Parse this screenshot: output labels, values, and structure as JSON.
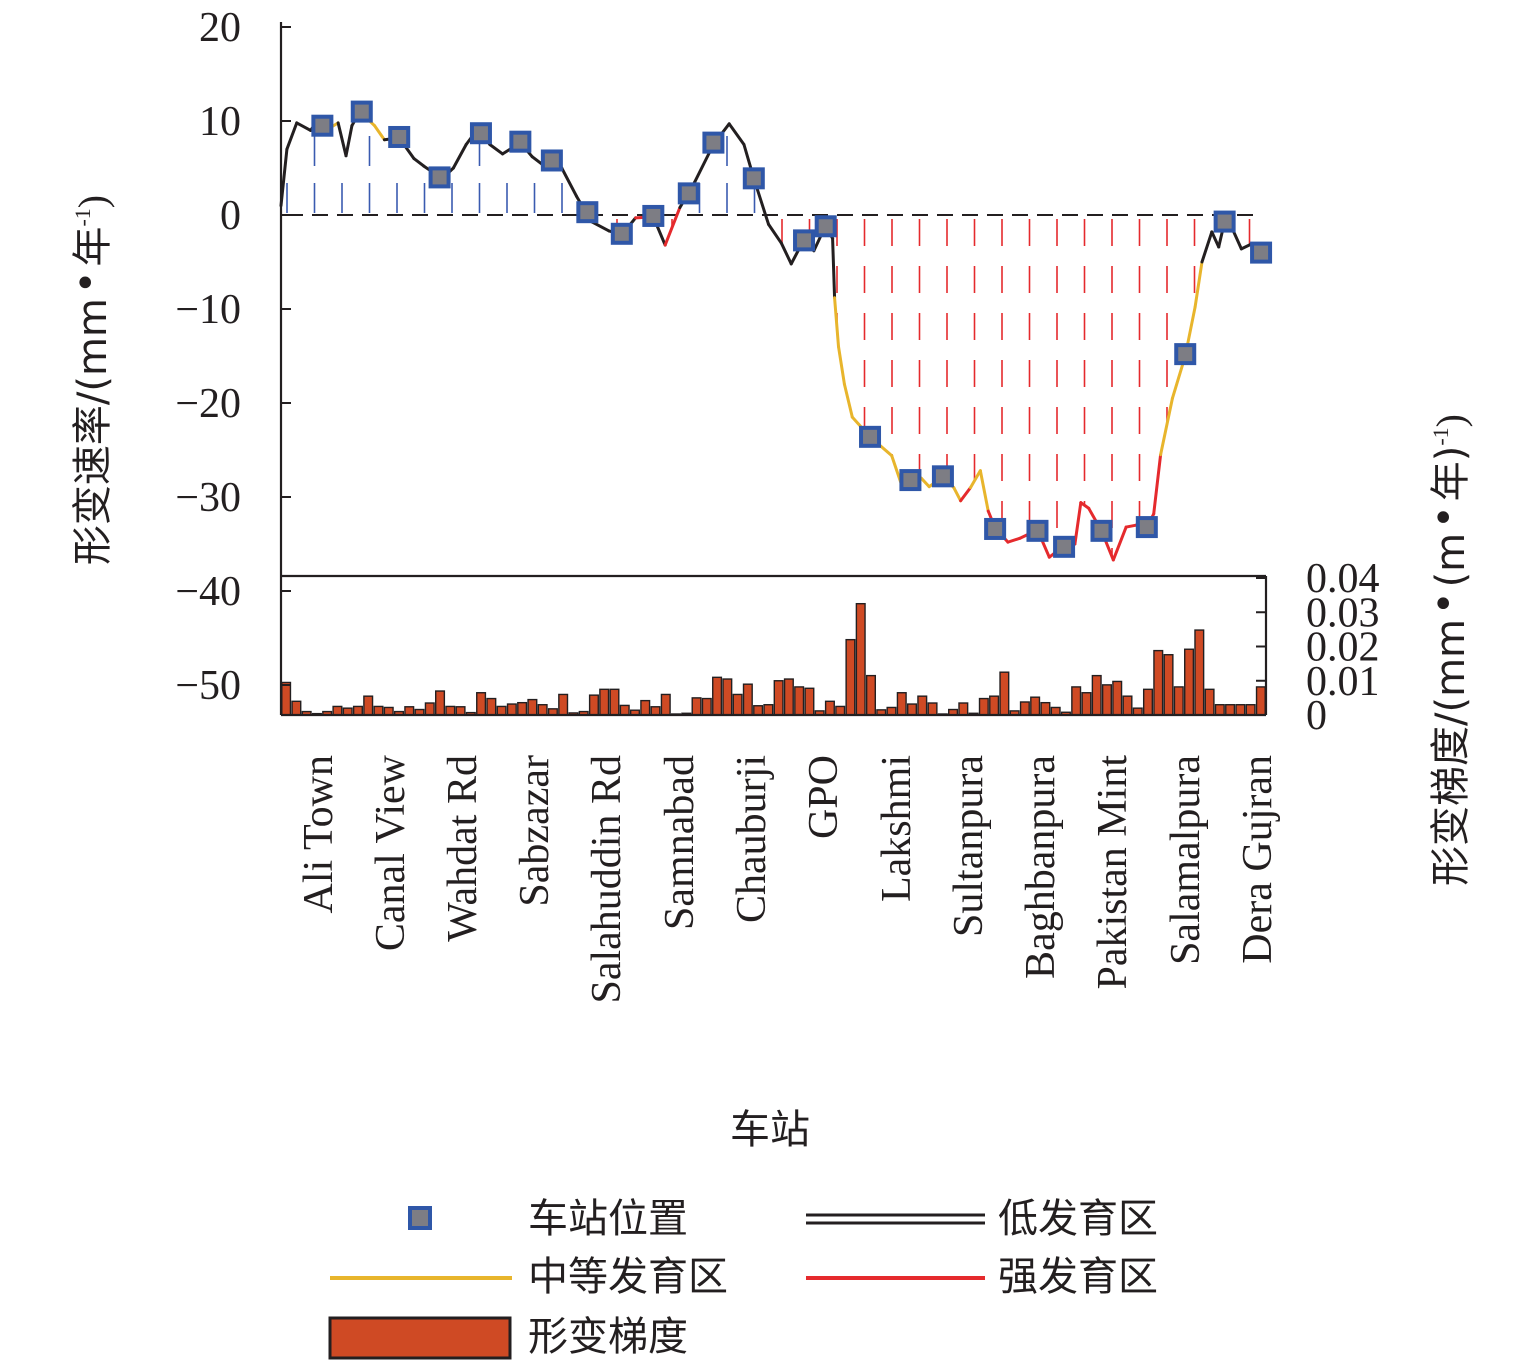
{
  "chart_data": {
    "type": "line+bar",
    "xlabel": "车站",
    "ylabel_left": "形变速率/(mm·年⁻¹)",
    "ylabel_right": "形变梯度/(mm·(m·年)⁻¹)",
    "ylabel_left_text": "形变速率/(mm",
    "ylabel_left_tail": "年",
    "ylabel_left_exp": "-1",
    "ylabel_left_close": ")",
    "ylabel_right_text": "形变梯度/(mm",
    "ylabel_right_mid": "(m",
    "ylabel_right_tail": "年)",
    "ylabel_right_exp": "-1",
    "ylabel_right_close": ")",
    "dot": "•",
    "ylim_left": [
      -52.5,
      20
    ],
    "ylim_right": [
      0,
      0.04
    ],
    "yticks_left": [
      "20",
      "10",
      "0",
      "−10",
      "−20",
      "−30",
      "−40",
      "−50"
    ],
    "yticks_right": [
      "0.04",
      "0.03",
      "0.02",
      "0.01",
      "0"
    ],
    "stations": [
      "Ali Town",
      "Canal View",
      "Wahdat Rd",
      "Sabzazar",
      "Salahuddin Rd",
      "Samnabad",
      "Chauburji",
      "GPO",
      "Lakshmi",
      "Sultanpura",
      "Baghbanpura",
      "Pakistan Mint",
      "Salamalpura",
      "Dera Gujran"
    ],
    "station_markers": [
      {
        "pos": 0.042,
        "value": 9.5
      },
      {
        "pos": 0.082,
        "value": 11.0
      },
      {
        "pos": 0.12,
        "value": 8.3
      },
      {
        "pos": 0.161,
        "value": 4.0
      },
      {
        "pos": 0.203,
        "value": 8.7
      },
      {
        "pos": 0.243,
        "value": 7.8
      },
      {
        "pos": 0.275,
        "value": 5.8
      },
      {
        "pos": 0.311,
        "value": 0.3
      },
      {
        "pos": 0.346,
        "value": -2.0
      },
      {
        "pos": 0.378,
        "value": -0.1
      },
      {
        "pos": 0.414,
        "value": 2.3
      },
      {
        "pos": 0.439,
        "value": 7.7
      },
      {
        "pos": 0.48,
        "value": 3.9
      },
      {
        "pos": 0.531,
        "value": -2.7
      },
      {
        "pos": 0.553,
        "value": -1.2
      },
      {
        "pos": 0.598,
        "value": -23.6
      },
      {
        "pos": 0.639,
        "value": -28.2
      },
      {
        "pos": 0.672,
        "value": -27.8
      },
      {
        "pos": 0.725,
        "value": -33.4
      },
      {
        "pos": 0.768,
        "value": -33.6
      },
      {
        "pos": 0.795,
        "value": -35.3
      },
      {
        "pos": 0.833,
        "value": -33.6
      },
      {
        "pos": 0.879,
        "value": -33.2
      },
      {
        "pos": 0.918,
        "value": -14.8
      },
      {
        "pos": 0.958,
        "value": -0.7
      },
      {
        "pos": 0.995,
        "value": -4.0
      }
    ],
    "rate_profile": [
      {
        "pos": 0.0,
        "value": 1.0,
        "zone": "low"
      },
      {
        "pos": 0.006,
        "value": 7.0,
        "zone": "low"
      },
      {
        "pos": 0.016,
        "value": 9.8,
        "zone": "low"
      },
      {
        "pos": 0.03,
        "value": 9.0,
        "zone": "low"
      },
      {
        "pos": 0.037,
        "value": 10.0,
        "zone": "moderate"
      },
      {
        "pos": 0.047,
        "value": 9.1,
        "zone": "moderate"
      },
      {
        "pos": 0.058,
        "value": 9.8,
        "zone": "low"
      },
      {
        "pos": 0.066,
        "value": 6.3,
        "zone": "low"
      },
      {
        "pos": 0.072,
        "value": 9.5,
        "zone": "low"
      },
      {
        "pos": 0.08,
        "value": 11.0,
        "zone": "moderate"
      },
      {
        "pos": 0.095,
        "value": 9.5,
        "zone": "moderate"
      },
      {
        "pos": 0.105,
        "value": 8.0,
        "zone": "low"
      },
      {
        "pos": 0.12,
        "value": 8.2,
        "zone": "low"
      },
      {
        "pos": 0.135,
        "value": 6.0,
        "zone": "low"
      },
      {
        "pos": 0.145,
        "value": 5.2,
        "zone": "low"
      },
      {
        "pos": 0.152,
        "value": 4.7,
        "zone": "low"
      },
      {
        "pos": 0.163,
        "value": 3.8,
        "zone": "low"
      },
      {
        "pos": 0.175,
        "value": 5.0,
        "zone": "low"
      },
      {
        "pos": 0.188,
        "value": 7.5,
        "zone": "low"
      },
      {
        "pos": 0.2,
        "value": 9.2,
        "zone": "low"
      },
      {
        "pos": 0.212,
        "value": 7.5,
        "zone": "low"
      },
      {
        "pos": 0.225,
        "value": 6.5,
        "zone": "low"
      },
      {
        "pos": 0.243,
        "value": 7.7,
        "zone": "low"
      },
      {
        "pos": 0.255,
        "value": 6.2,
        "zone": "low"
      },
      {
        "pos": 0.265,
        "value": 5.4,
        "zone": "low"
      },
      {
        "pos": 0.275,
        "value": 5.8,
        "zone": "low"
      },
      {
        "pos": 0.285,
        "value": 5.0,
        "zone": "low"
      },
      {
        "pos": 0.3,
        "value": 2.0,
        "zone": "low"
      },
      {
        "pos": 0.315,
        "value": -0.7,
        "zone": "low"
      },
      {
        "pos": 0.333,
        "value": -1.7,
        "zone": "low"
      },
      {
        "pos": 0.346,
        "value": -2.1,
        "zone": "low"
      },
      {
        "pos": 0.36,
        "value": -0.3,
        "zone": "strong"
      },
      {
        "pos": 0.378,
        "value": -0.2,
        "zone": "low"
      },
      {
        "pos": 0.39,
        "value": -3.2,
        "zone": "strong"
      },
      {
        "pos": 0.405,
        "value": 0.8,
        "zone": "low"
      },
      {
        "pos": 0.42,
        "value": 3.5,
        "zone": "low"
      },
      {
        "pos": 0.439,
        "value": 7.5,
        "zone": "low"
      },
      {
        "pos": 0.455,
        "value": 9.7,
        "zone": "low"
      },
      {
        "pos": 0.47,
        "value": 7.5,
        "zone": "low"
      },
      {
        "pos": 0.48,
        "value": 3.9,
        "zone": "low"
      },
      {
        "pos": 0.495,
        "value": -1.0,
        "zone": "low"
      },
      {
        "pos": 0.508,
        "value": -3.0,
        "zone": "low"
      },
      {
        "pos": 0.518,
        "value": -5.2,
        "zone": "low"
      },
      {
        "pos": 0.531,
        "value": -2.6,
        "zone": "low"
      },
      {
        "pos": 0.541,
        "value": -3.8,
        "zone": "low"
      },
      {
        "pos": 0.553,
        "value": -1.1,
        "zone": "low"
      },
      {
        "pos": 0.56,
        "value": -2.5,
        "zone": "low"
      },
      {
        "pos": 0.562,
        "value": -8.8,
        "zone": "moderate"
      },
      {
        "pos": 0.566,
        "value": -14.0,
        "zone": "moderate"
      },
      {
        "pos": 0.572,
        "value": -18.0,
        "zone": "moderate"
      },
      {
        "pos": 0.58,
        "value": -21.5,
        "zone": "moderate"
      },
      {
        "pos": 0.598,
        "value": -23.6,
        "zone": "moderate"
      },
      {
        "pos": 0.62,
        "value": -25.6,
        "zone": "moderate"
      },
      {
        "pos": 0.63,
        "value": -28.7,
        "zone": "moderate"
      },
      {
        "pos": 0.639,
        "value": -28.2,
        "zone": "moderate"
      },
      {
        "pos": 0.65,
        "value": -28.0,
        "zone": "moderate"
      },
      {
        "pos": 0.658,
        "value": -28.9,
        "zone": "moderate"
      },
      {
        "pos": 0.672,
        "value": -27.9,
        "zone": "moderate"
      },
      {
        "pos": 0.683,
        "value": -29.0,
        "zone": "moderate"
      },
      {
        "pos": 0.69,
        "value": -30.4,
        "zone": "strong"
      },
      {
        "pos": 0.7,
        "value": -29.0,
        "zone": "moderate"
      },
      {
        "pos": 0.71,
        "value": -27.2,
        "zone": "moderate"
      },
      {
        "pos": 0.718,
        "value": -31.5,
        "zone": "strong"
      },
      {
        "pos": 0.725,
        "value": -33.3,
        "zone": "strong"
      },
      {
        "pos": 0.738,
        "value": -34.8,
        "zone": "strong"
      },
      {
        "pos": 0.75,
        "value": -34.4,
        "zone": "strong"
      },
      {
        "pos": 0.768,
        "value": -33.5,
        "zone": "strong"
      },
      {
        "pos": 0.78,
        "value": -36.4,
        "zone": "strong"
      },
      {
        "pos": 0.795,
        "value": -35.2,
        "zone": "strong"
      },
      {
        "pos": 0.806,
        "value": -35.0,
        "zone": "strong"
      },
      {
        "pos": 0.812,
        "value": -30.6,
        "zone": "strong"
      },
      {
        "pos": 0.82,
        "value": -31.2,
        "zone": "strong"
      },
      {
        "pos": 0.833,
        "value": -33.6,
        "zone": "strong"
      },
      {
        "pos": 0.845,
        "value": -36.7,
        "zone": "strong"
      },
      {
        "pos": 0.858,
        "value": -33.2,
        "zone": "strong"
      },
      {
        "pos": 0.868,
        "value": -33.0,
        "zone": "strong"
      },
      {
        "pos": 0.879,
        "value": -33.2,
        "zone": "strong"
      },
      {
        "pos": 0.886,
        "value": -31.8,
        "zone": "strong"
      },
      {
        "pos": 0.893,
        "value": -25.5,
        "zone": "moderate"
      },
      {
        "pos": 0.905,
        "value": -19.5,
        "zone": "moderate"
      },
      {
        "pos": 0.918,
        "value": -15.0,
        "zone": "moderate"
      },
      {
        "pos": 0.928,
        "value": -9.8,
        "zone": "moderate"
      },
      {
        "pos": 0.935,
        "value": -5.0,
        "zone": "low"
      },
      {
        "pos": 0.945,
        "value": -1.8,
        "zone": "low"
      },
      {
        "pos": 0.952,
        "value": -3.4,
        "zone": "low"
      },
      {
        "pos": 0.958,
        "value": -0.7,
        "zone": "low"
      },
      {
        "pos": 0.966,
        "value": -1.5,
        "zone": "low"
      },
      {
        "pos": 0.975,
        "value": -3.6,
        "zone": "low"
      },
      {
        "pos": 0.985,
        "value": -3.1,
        "zone": "low"
      },
      {
        "pos": 0.995,
        "value": -4.0,
        "zone": "low"
      }
    ],
    "gradient_bars": [
      0.0095,
      0.004,
      0.001,
      0.0004,
      0.001,
      0.0025,
      0.002,
      0.0025,
      0.0055,
      0.0025,
      0.0022,
      0.001,
      0.0024,
      0.0016,
      0.0035,
      0.007,
      0.0025,
      0.0024,
      0.0007,
      0.0065,
      0.0048,
      0.0025,
      0.0032,
      0.0036,
      0.0045,
      0.003,
      0.0018,
      0.006,
      0.0006,
      0.001,
      0.0058,
      0.0075,
      0.0075,
      0.0028,
      0.0014,
      0.0042,
      0.0024,
      0.006,
      0.0002,
      0.0005,
      0.005,
      0.0048,
      0.011,
      0.0105,
      0.006,
      0.009,
      0.0027,
      0.003,
      0.01,
      0.0105,
      0.0082,
      0.0078,
      0.0012,
      0.004,
      0.0025,
      0.022,
      0.0325,
      0.0115,
      0.0015,
      0.0022,
      0.0065,
      0.0032,
      0.0055,
      0.0035,
      0.0002,
      0.0016,
      0.0035,
      0.0005,
      0.0048,
      0.0055,
      0.0125,
      0.0012,
      0.0038,
      0.0052,
      0.0036,
      0.0022,
      0.0008,
      0.0082,
      0.0065,
      0.0115,
      0.0088,
      0.0098,
      0.0055,
      0.002,
      0.0075,
      0.0188,
      0.0176,
      0.0082,
      0.0192,
      0.0248,
      0.0075,
      0.003,
      0.003,
      0.003,
      0.003,
      0.0082
    ],
    "legend": {
      "station_marker": "车站位置",
      "low_zone": "低发育区",
      "moderate_zone": "中等发育区",
      "strong_zone": "强发育区",
      "gradient": "形变梯度"
    },
    "colors": {
      "low_zone": "#231f20",
      "moderate_zone": "#e8b52c",
      "strong_zone": "#e52a2d",
      "uplift_hatch": "#3a5bb0",
      "subsidence_hatch": "#e52a2d",
      "marker_fill": "#7d7d84",
      "marker_border": "#2f57a8",
      "bar_fill": "#cf4a24",
      "axis": "#231f20"
    }
  }
}
